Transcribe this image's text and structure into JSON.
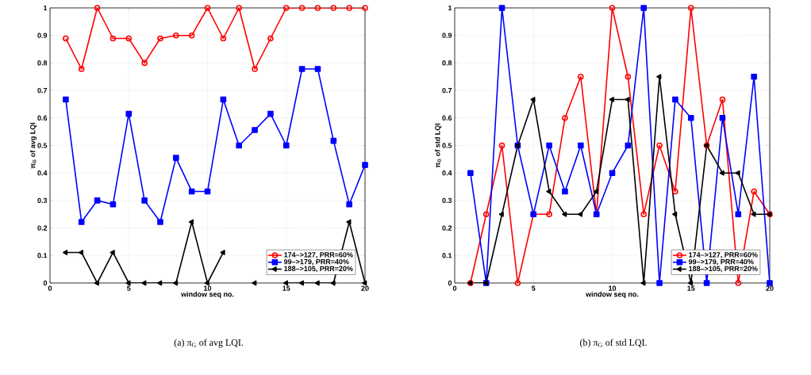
{
  "chart_data": [
    {
      "type": "line",
      "xlabel": "window seq no.",
      "ylabel": "π$_{G}$ of avg LQI",
      "xlim": [
        0,
        20
      ],
      "ylim": [
        0,
        1
      ],
      "xticks": [
        0,
        5,
        10,
        15,
        20
      ],
      "yticks": [
        0,
        0.1,
        0.2,
        0.3,
        0.4,
        0.5,
        0.6,
        0.7,
        0.8,
        0.9,
        1
      ],
      "grid": true,
      "legend": "bottom right",
      "annotations": [
        "(a) π$_{G}$ of avg LQI."
      ],
      "x": [
        1,
        2,
        3,
        4,
        5,
        6,
        7,
        8,
        9,
        10,
        11,
        12,
        13,
        14,
        15,
        16,
        17,
        18,
        19,
        20
      ],
      "series": [
        {
          "name": "174–>127, PRR=60%",
          "color": "#ff0000",
          "marker": "circle",
          "values": [
            0.889,
            0.778,
            1,
            0.889,
            0.889,
            0.8,
            0.889,
            0.9,
            0.9,
            1,
            0.889,
            1,
            0.778,
            0.889,
            1,
            1,
            1,
            1,
            1,
            1
          ]
        },
        {
          "name": "99–>179, PRR=40%",
          "color": "#0000ff",
          "marker": "square",
          "values": [
            0.667,
            0.222,
            0.3,
            0.286,
            0.615,
            0.3,
            0.222,
            0.455,
            0.333,
            0.333,
            0.667,
            0.5,
            0.556,
            0.615,
            0.5,
            0.778,
            0.778,
            0.517,
            0.286,
            0.429
          ]
        },
        {
          "name": "188–>105, PRR=20%",
          "color": "#000000",
          "marker": "triangle",
          "values": [
            0.111,
            0.111,
            0,
            0.111,
            0,
            0,
            0,
            0,
            0.222,
            0,
            0.111,
            null,
            0,
            null,
            0,
            0,
            0,
            0,
            0.222,
            0
          ]
        }
      ]
    },
    {
      "type": "line",
      "xlabel": "window seq no.",
      "ylabel": "π$_{G}$ of std LQI",
      "xlim": [
        0,
        20
      ],
      "ylim": [
        0,
        1
      ],
      "xticks": [
        0,
        5,
        10,
        15,
        20
      ],
      "yticks": [
        0,
        0.1,
        0.2,
        0.3,
        0.4,
        0.5,
        0.6,
        0.7,
        0.8,
        0.9,
        1
      ],
      "grid": true,
      "legend": "bottom right",
      "annotations": [
        "(b) π$_{G}$ of std LQI."
      ],
      "x": [
        1,
        2,
        3,
        4,
        5,
        6,
        7,
        8,
        9,
        10,
        11,
        12,
        13,
        14,
        15,
        16,
        17,
        18,
        19,
        20
      ],
      "series": [
        {
          "name": "174–>127, PRR=60%",
          "color": "#ff0000",
          "marker": "circle",
          "values": [
            0,
            0.25,
            0.5,
            0,
            0.25,
            0.25,
            0.6,
            0.75,
            0.25,
            1,
            0.75,
            0.25,
            0.5,
            0.333,
            1,
            0.5,
            0.667,
            0,
            0.333,
            0.25
          ]
        },
        {
          "name": "99–>179, PRR=40%",
          "color": "#0000ff",
          "marker": "square",
          "values": [
            0.4,
            0,
            1,
            0.5,
            0.25,
            0.5,
            0.333,
            0.5,
            0.25,
            0.4,
            0.5,
            1,
            0,
            0.667,
            0.6,
            0,
            0.6,
            0.25,
            0.75,
            0
          ]
        },
        {
          "name": "188–>105, PRR=20%",
          "color": "#000000",
          "marker": "triangle",
          "values": [
            0,
            0,
            0.25,
            0.5,
            0.667,
            0.333,
            0.25,
            0.25,
            0.333,
            0.667,
            0.667,
            0,
            0.75,
            0.25,
            0,
            0.5,
            0.4,
            0.4,
            0.25,
            0.25
          ]
        }
      ]
    }
  ]
}
